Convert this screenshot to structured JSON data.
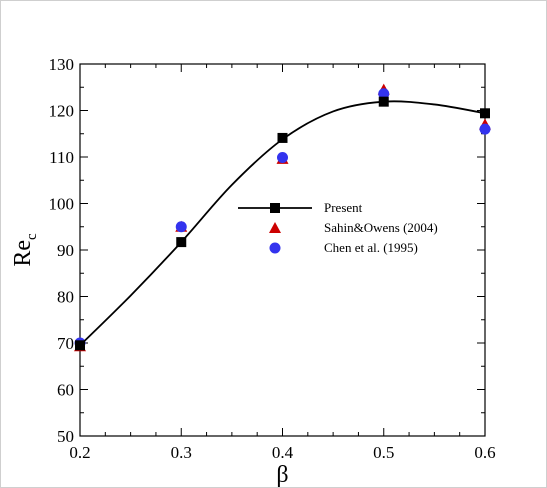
{
  "chart_data": {
    "type": "scatter",
    "xlabel": "β",
    "ylabel_main": "Re",
    "ylabel_sub": "c",
    "xlim": [
      0.2,
      0.6
    ],
    "ylim": [
      50,
      130
    ],
    "x_ticks": [
      "0.2",
      "0.3",
      "0.4",
      "0.5",
      "0.6"
    ],
    "y_ticks": [
      "50",
      "60",
      "70",
      "80",
      "90",
      "100",
      "110",
      "120",
      "130"
    ],
    "grid": false,
    "legend_position": "center-right",
    "series": [
      {
        "name": "Present",
        "style": "line-square",
        "color": "#000000",
        "points": [
          [
            0.2,
            69.5
          ],
          [
            0.3,
            91.7
          ],
          [
            0.4,
            114.1
          ],
          [
            0.5,
            121.9
          ],
          [
            0.6,
            119.4
          ]
        ],
        "curve": [
          [
            0.2,
            69.5
          ],
          [
            0.25,
            80.2
          ],
          [
            0.3,
            91.7
          ],
          [
            0.35,
            104.0
          ],
          [
            0.4,
            113.8
          ],
          [
            0.45,
            119.8
          ],
          [
            0.5,
            121.9
          ],
          [
            0.55,
            121.3
          ],
          [
            0.6,
            119.4
          ]
        ]
      },
      {
        "name": "Sahin&Owens (2004)",
        "style": "triangle",
        "color": "#cc0000",
        "points": [
          [
            0.2,
            69.3
          ],
          [
            0.3,
            95.0
          ],
          [
            0.4,
            109.6
          ],
          [
            0.5,
            124.5
          ],
          [
            0.6,
            117.0
          ]
        ]
      },
      {
        "name": "Chen et al. (1995)",
        "style": "circle",
        "color": "#3333ee",
        "points": [
          [
            0.2,
            70.0
          ],
          [
            0.3,
            95.0
          ],
          [
            0.4,
            109.9
          ],
          [
            0.5,
            123.6
          ],
          [
            0.6,
            116.0
          ]
        ]
      }
    ]
  }
}
